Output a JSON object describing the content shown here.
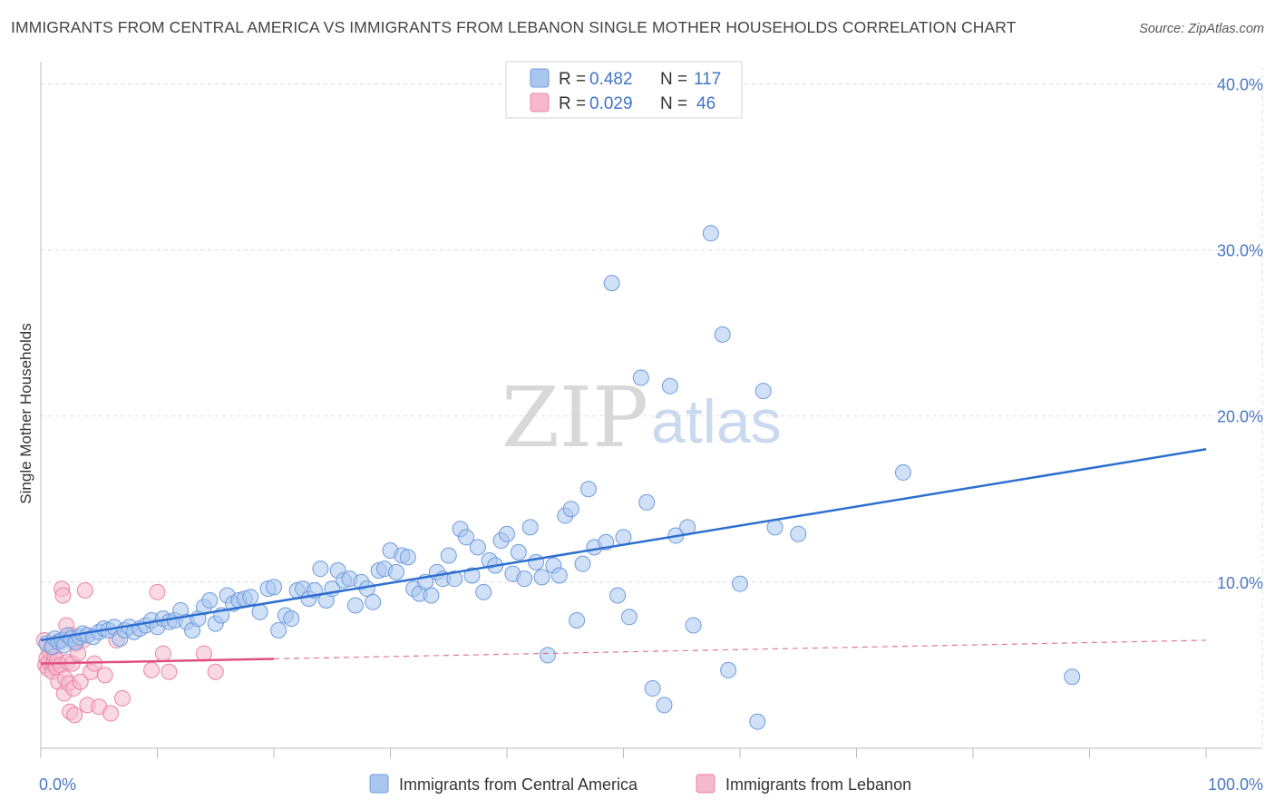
{
  "title": "IMMIGRANTS FROM CENTRAL AMERICA VS IMMIGRANTS FROM LEBANON SINGLE MOTHER HOUSEHOLDS CORRELATION CHART",
  "source": "Source: ZipAtlas.com",
  "watermark": {
    "zip": "ZIP",
    "atlas": "atlas"
  },
  "legend": {
    "r_label": "R =",
    "n_label": "N =",
    "series": [
      {
        "r": "0.482",
        "n": "117"
      },
      {
        "r": "0.029",
        "n": "46"
      }
    ]
  },
  "chart_data": {
    "type": "scatter",
    "title": "IMMIGRANTS FROM CENTRAL AMERICA VS IMMIGRANTS FROM LEBANON SINGLE MOTHER HOUSEHOLDS CORRELATION CHART",
    "xlabel": "",
    "ylabel": "Single Mother Households",
    "xlim": [
      0,
      100
    ],
    "ylim": [
      0,
      41
    ],
    "x_tick_labels": [
      "0.0%",
      "100.0%"
    ],
    "y_ticks": [
      10,
      20,
      30,
      40
    ],
    "y_tick_labels": [
      "10.0%",
      "20.0%",
      "30.0%",
      "40.0%"
    ],
    "colors": {
      "central_america_fill": "#a9c6ef",
      "central_america_stroke": "#6f9bdc",
      "central_america_line": "#2d6fd0",
      "lebanon_fill": "#f6b9cc",
      "lebanon_stroke": "#ea84a4",
      "lebanon_line": "#e0507f",
      "grid": "#dddddd",
      "axis": "#bbbbbb"
    },
    "series": [
      {
        "name": "Immigrants from Central America",
        "r": 0.482,
        "n": 117,
        "trend": {
          "x0": 0,
          "y0": 6.5,
          "x1": 100,
          "y1": 18.0
        },
        "points": [
          [
            0.5,
            6.3
          ],
          [
            1.0,
            6.1
          ],
          [
            1.2,
            6.6
          ],
          [
            1.5,
            6.4
          ],
          [
            1.8,
            6.5
          ],
          [
            2.0,
            6.2
          ],
          [
            2.3,
            6.8
          ],
          [
            2.6,
            6.6
          ],
          [
            3.0,
            6.4
          ],
          [
            3.3,
            6.7
          ],
          [
            3.6,
            6.9
          ],
          [
            4.0,
            6.8
          ],
          [
            4.5,
            6.7
          ],
          [
            5.0,
            7.0
          ],
          [
            5.4,
            7.2
          ],
          [
            5.8,
            7.1
          ],
          [
            6.3,
            7.3
          ],
          [
            6.8,
            6.6
          ],
          [
            7.2,
            7.1
          ],
          [
            7.6,
            7.3
          ],
          [
            8.0,
            7.0
          ],
          [
            8.5,
            7.2
          ],
          [
            9.0,
            7.4
          ],
          [
            9.5,
            7.7
          ],
          [
            10.0,
            7.3
          ],
          [
            10.5,
            7.8
          ],
          [
            11.0,
            7.6
          ],
          [
            11.5,
            7.7
          ],
          [
            12.0,
            8.3
          ],
          [
            12.5,
            7.6
          ],
          [
            13.0,
            7.1
          ],
          [
            13.5,
            7.8
          ],
          [
            14.0,
            8.5
          ],
          [
            14.5,
            8.9
          ],
          [
            15.0,
            7.5
          ],
          [
            15.5,
            8.0
          ],
          [
            16.0,
            9.2
          ],
          [
            16.5,
            8.7
          ],
          [
            17.0,
            8.9
          ],
          [
            17.5,
            9.0
          ],
          [
            18.0,
            9.1
          ],
          [
            18.8,
            8.2
          ],
          [
            19.5,
            9.6
          ],
          [
            20.0,
            9.7
          ],
          [
            20.4,
            7.1
          ],
          [
            21.0,
            8.0
          ],
          [
            21.5,
            7.8
          ],
          [
            22.0,
            9.5
          ],
          [
            22.5,
            9.6
          ],
          [
            23.0,
            9.0
          ],
          [
            23.5,
            9.5
          ],
          [
            24.0,
            10.8
          ],
          [
            24.5,
            8.9
          ],
          [
            25.0,
            9.6
          ],
          [
            25.5,
            10.7
          ],
          [
            26.0,
            10.1
          ],
          [
            26.5,
            10.2
          ],
          [
            27.0,
            8.6
          ],
          [
            27.5,
            10.0
          ],
          [
            28.0,
            9.6
          ],
          [
            28.5,
            8.8
          ],
          [
            29.0,
            10.7
          ],
          [
            29.5,
            10.8
          ],
          [
            30.0,
            11.9
          ],
          [
            30.5,
            10.6
          ],
          [
            31.0,
            11.6
          ],
          [
            31.5,
            11.5
          ],
          [
            32.0,
            9.6
          ],
          [
            32.5,
            9.3
          ],
          [
            33.0,
            10.0
          ],
          [
            33.5,
            9.2
          ],
          [
            34.0,
            10.6
          ],
          [
            34.5,
            10.2
          ],
          [
            35.0,
            11.6
          ],
          [
            35.5,
            10.2
          ],
          [
            36.0,
            13.2
          ],
          [
            36.5,
            12.7
          ],
          [
            37.0,
            10.4
          ],
          [
            37.5,
            12.1
          ],
          [
            38.0,
            9.4
          ],
          [
            38.5,
            11.3
          ],
          [
            39.0,
            11.0
          ],
          [
            39.5,
            12.5
          ],
          [
            40.0,
            12.9
          ],
          [
            40.5,
            10.5
          ],
          [
            41.0,
            11.8
          ],
          [
            41.5,
            10.2
          ],
          [
            42.0,
            13.3
          ],
          [
            42.5,
            11.2
          ],
          [
            43.0,
            10.3
          ],
          [
            43.5,
            5.6
          ],
          [
            44.0,
            11.0
          ],
          [
            44.5,
            10.4
          ],
          [
            45.0,
            14.0
          ],
          [
            45.5,
            14.4
          ],
          [
            46.0,
            7.7
          ],
          [
            46.5,
            11.1
          ],
          [
            47.0,
            15.6
          ],
          [
            47.5,
            12.1
          ],
          [
            48.5,
            12.4
          ],
          [
            49.0,
            28.0
          ],
          [
            49.5,
            9.2
          ],
          [
            50.0,
            12.7
          ],
          [
            50.5,
            7.9
          ],
          [
            51.5,
            22.3
          ],
          [
            52.0,
            14.8
          ],
          [
            52.5,
            3.6
          ],
          [
            53.5,
            2.6
          ],
          [
            54.0,
            21.8
          ],
          [
            54.5,
            12.8
          ],
          [
            55.5,
            13.3
          ],
          [
            56.0,
            7.4
          ],
          [
            57.5,
            31.0
          ],
          [
            58.5,
            24.9
          ],
          [
            59.0,
            4.7
          ],
          [
            60.0,
            9.9
          ],
          [
            61.5,
            1.6
          ],
          [
            62.0,
            21.5
          ],
          [
            63.0,
            13.3
          ],
          [
            65.0,
            12.9
          ],
          [
            74.0,
            16.6
          ],
          [
            88.5,
            4.3
          ]
        ]
      },
      {
        "name": "Immigrants from Lebanon",
        "r": 0.029,
        "n": 46,
        "trend": {
          "x0": 0,
          "y0": 5.1,
          "x1": 100,
          "y1": 6.5,
          "solid_until_x": 20
        },
        "points": [
          [
            0.3,
            6.5
          ],
          [
            0.4,
            5.0
          ],
          [
            0.5,
            5.4
          ],
          [
            0.6,
            4.8
          ],
          [
            0.7,
            5.2
          ],
          [
            0.8,
            5.8
          ],
          [
            0.9,
            6.1
          ],
          [
            1.0,
            4.6
          ],
          [
            1.1,
            5.1
          ],
          [
            1.2,
            5.5
          ],
          [
            1.3,
            4.9
          ],
          [
            1.4,
            5.3
          ],
          [
            1.5,
            4.0
          ],
          [
            1.6,
            6.4
          ],
          [
            1.7,
            5.0
          ],
          [
            1.8,
            9.6
          ],
          [
            1.9,
            9.2
          ],
          [
            2.0,
            3.3
          ],
          [
            2.1,
            4.2
          ],
          [
            2.2,
            7.4
          ],
          [
            2.3,
            5.2
          ],
          [
            2.4,
            3.9
          ],
          [
            2.5,
            2.2
          ],
          [
            2.6,
            6.8
          ],
          [
            2.7,
            5.1
          ],
          [
            2.8,
            3.6
          ],
          [
            2.9,
            2.0
          ],
          [
            3.0,
            6.3
          ],
          [
            3.2,
            5.7
          ],
          [
            3.4,
            4.0
          ],
          [
            3.6,
            6.5
          ],
          [
            3.8,
            9.5
          ],
          [
            4.0,
            2.6
          ],
          [
            4.3,
            4.6
          ],
          [
            4.6,
            5.1
          ],
          [
            5.0,
            2.5
          ],
          [
            5.5,
            4.4
          ],
          [
            6.0,
            2.1
          ],
          [
            6.5,
            6.5
          ],
          [
            7.0,
            3.0
          ],
          [
            9.5,
            4.7
          ],
          [
            10.0,
            9.4
          ],
          [
            10.5,
            5.7
          ],
          [
            11.0,
            4.6
          ],
          [
            14.0,
            5.7
          ],
          [
            15.0,
            4.6
          ]
        ]
      }
    ],
    "legend_entries": [
      "Immigrants from Central America",
      "Immigrants from Lebanon"
    ]
  }
}
